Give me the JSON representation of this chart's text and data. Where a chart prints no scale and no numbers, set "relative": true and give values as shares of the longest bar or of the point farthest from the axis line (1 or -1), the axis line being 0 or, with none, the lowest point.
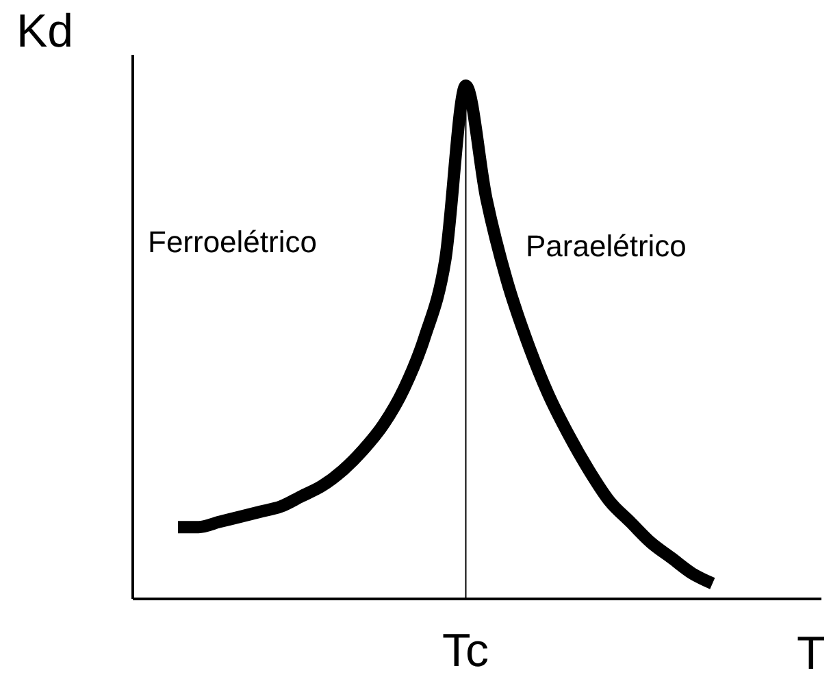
{
  "chart_data": {
    "type": "line",
    "relative": true,
    "ylabel": "Kd",
    "xlabel": "T",
    "categories": [
      null,
      null,
      null,
      null,
      null,
      null,
      null,
      null,
      null,
      null,
      null,
      null,
      null,
      null,
      null,
      null,
      null,
      null,
      null,
      null,
      null,
      null,
      null,
      null,
      null,
      null,
      null
    ],
    "series": [
      {
        "color": "#000000",
        "values": [
          0.14,
          0.14,
          0.15,
          0.16,
          0.17,
          0.18,
          0.2,
          0.22,
          0.25,
          0.29,
          0.34,
          0.41,
          0.51,
          0.66,
          1,
          0.78,
          0.62,
          0.5,
          0.4,
          0.32,
          0.25,
          0.19,
          0.15,
          0.11,
          0.08,
          0.05,
          0.03
        ]
      }
    ],
    "annotations": [
      "Ferroelétrico",
      "Paraelétrico",
      "Tc"
    ],
    "grid": false,
    "legend": false,
    "marker": "none",
    "line_style": "solid"
  }
}
